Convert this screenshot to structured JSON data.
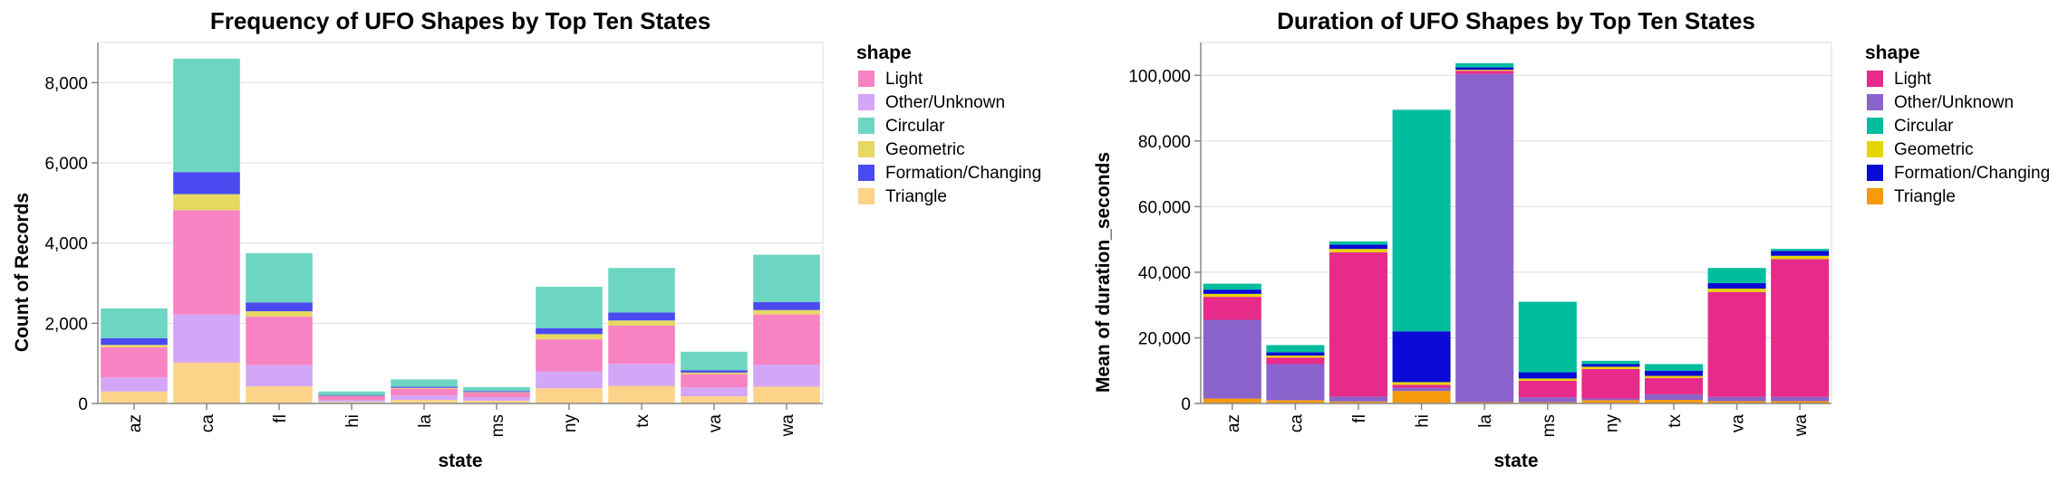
{
  "chart_data": [
    {
      "type": "bar",
      "stacked": true,
      "title": "Frequency of UFO Shapes by Top Ten States",
      "xlabel": "state",
      "ylabel": "Count of Records",
      "ylim": [
        0,
        9000
      ],
      "yticks": [
        0,
        2000,
        4000,
        6000,
        8000
      ],
      "ytick_labels": [
        "0",
        "2,000",
        "4,000",
        "6,000",
        "8,000"
      ],
      "grid": true,
      "legend_title": "shape",
      "legend_position": "right",
      "categories": [
        "az",
        "ca",
        "fl",
        "hi",
        "la",
        "ms",
        "ny",
        "tx",
        "va",
        "wa"
      ],
      "series": [
        {
          "name": "Triangle",
          "color": "#fdd38a",
          "values": [
            300,
            1020,
            430,
            40,
            90,
            70,
            380,
            440,
            180,
            420
          ]
        },
        {
          "name": "Other/Unknown",
          "color": "#d4a6f7",
          "values": [
            350,
            1200,
            530,
            50,
            110,
            80,
            420,
            550,
            220,
            550
          ]
        },
        {
          "name": "Light",
          "color": "#f883c2",
          "values": [
            750,
            2600,
            1210,
            90,
            170,
            120,
            800,
            950,
            330,
            1250
          ]
        },
        {
          "name": "Geometric",
          "color": "#e6d860",
          "values": [
            60,
            400,
            130,
            10,
            20,
            15,
            130,
            130,
            40,
            110
          ]
        },
        {
          "name": "Formation/Changing",
          "color": "#4a4af0",
          "values": [
            170,
            550,
            220,
            20,
            30,
            25,
            150,
            200,
            60,
            200
          ]
        },
        {
          "name": "Circular",
          "color": "#6dd6c2",
          "values": [
            740,
            2830,
            1230,
            90,
            180,
            100,
            1030,
            1110,
            460,
            1180
          ]
        }
      ]
    },
    {
      "type": "bar",
      "stacked": true,
      "title": "Duration of UFO Shapes by Top Ten States",
      "xlabel": "state",
      "ylabel": "Mean of duration_seconds",
      "ylim": [
        0,
        110000
      ],
      "yticks": [
        0,
        20000,
        40000,
        60000,
        80000,
        100000
      ],
      "ytick_labels": [
        "0",
        "20,000",
        "40,000",
        "60,000",
        "80,000",
        "100,000"
      ],
      "grid": true,
      "legend_title": "shape",
      "legend_position": "right",
      "categories": [
        "az",
        "ca",
        "fl",
        "hi",
        "la",
        "ms",
        "ny",
        "tx",
        "va",
        "wa"
      ],
      "series": [
        {
          "name": "Triangle",
          "color": "#f59a0a",
          "values": [
            1500,
            1000,
            600,
            3800,
            400,
            400,
            1000,
            1100,
            700,
            700
          ]
        },
        {
          "name": "Other/Unknown",
          "color": "#8a63cc",
          "values": [
            24000,
            11000,
            1500,
            1000,
            100000,
            1500,
            500,
            1700,
            1300,
            1300
          ]
        },
        {
          "name": "Light",
          "color": "#e62b8a",
          "values": [
            7000,
            2000,
            44000,
            900,
            1000,
            5000,
            9000,
            5000,
            32000,
            42000
          ]
        },
        {
          "name": "Geometric",
          "color": "#e6d600",
          "values": [
            900,
            600,
            1000,
            800,
            300,
            700,
            700,
            600,
            1000,
            1000
          ]
        },
        {
          "name": "Formation/Changing",
          "color": "#0a0ad6",
          "values": [
            1300,
            1000,
            1300,
            15500,
            700,
            1900,
            800,
            1600,
            1700,
            1500
          ]
        },
        {
          "name": "Circular",
          "color": "#00bd9e",
          "values": [
            1800,
            2200,
            1000,
            67500,
            1300,
            21500,
            1000,
            2000,
            4600,
            600
          ]
        }
      ]
    }
  ]
}
